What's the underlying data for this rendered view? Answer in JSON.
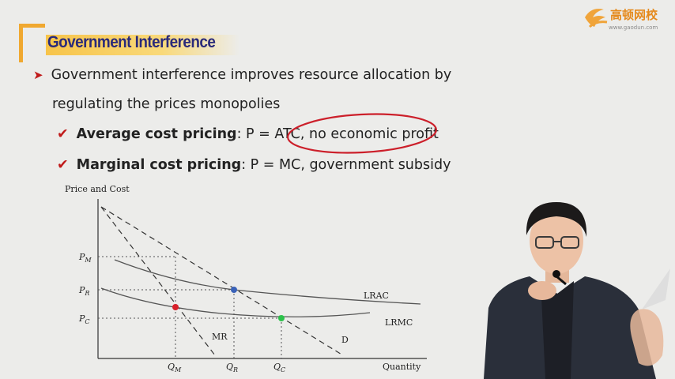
{
  "logo": {
    "name": "高顿网校",
    "url": "www.gaodun.com"
  },
  "slide": {
    "title": "Government Interference",
    "bullet_main_line1": "Government interference improves resource allocation by",
    "bullet_main_line2": "regulating the prices monopolies",
    "sub1_label": "Average cost pricing",
    "sub1_text": ": P = ATC, no economic profit",
    "sub2_label": "Marginal cost pricing",
    "sub2_text": ": P = MC, government subsidy"
  },
  "diagram": {
    "y_axis_label": "Price and Cost",
    "x_axis_label": "Quantity",
    "price_labels": [
      {
        "letter": "P",
        "sub": "M"
      },
      {
        "letter": "P",
        "sub": "R"
      },
      {
        "letter": "P",
        "sub": "C"
      }
    ],
    "quantity_labels": [
      {
        "letter": "Q",
        "sub": "M"
      },
      {
        "letter": "Q",
        "sub": "R"
      },
      {
        "letter": "Q",
        "sub": "C"
      }
    ],
    "curve_labels": {
      "lrac": "LRAC",
      "lrmc": "LRMC",
      "mr": "MR",
      "d": "D"
    },
    "point_colors": {
      "monopoly": "#d8202a",
      "avg_cost": "#3a62b8",
      "marg_cost": "#2cc24a"
    },
    "annotation_color": "#cc1f2a"
  }
}
